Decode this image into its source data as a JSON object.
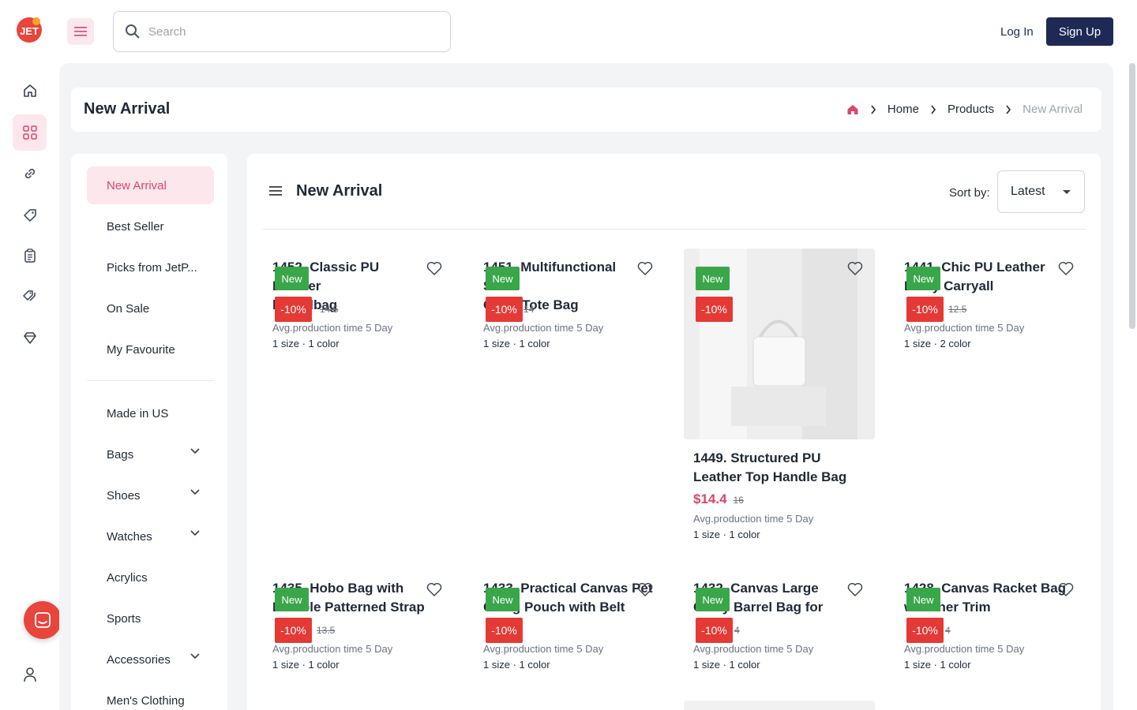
{
  "header": {
    "logo_text": "JET",
    "search_placeholder": "Search",
    "login_label": "Log In",
    "signup_label": "Sign Up"
  },
  "rail": {
    "icons": [
      "home-icon",
      "grid-icon",
      "link-icon",
      "tag-icon",
      "clipboard-icon",
      "tags-icon",
      "diamond-icon"
    ],
    "active": "grid-icon"
  },
  "page": {
    "title": "New Arrival",
    "breadcrumb": [
      "Home",
      "Products",
      "New Arrival"
    ]
  },
  "categories": {
    "items": [
      {
        "label": "New Arrival",
        "active": true
      },
      {
        "label": "Best Seller"
      },
      {
        "label": "Picks from JetP..."
      },
      {
        "label": "On Sale"
      },
      {
        "label": "My Favourite"
      },
      {
        "label": "Made in US"
      },
      {
        "label": "Bags",
        "expandable": true
      },
      {
        "label": "Shoes",
        "expandable": true
      },
      {
        "label": "Watches",
        "expandable": true
      },
      {
        "label": "Acrylics"
      },
      {
        "label": "Sports"
      },
      {
        "label": "Accessories",
        "expandable": true
      },
      {
        "label": "Men's Clothing"
      }
    ]
  },
  "products_panel": {
    "title": "New Arrival",
    "sort_label": "Sort by:",
    "sort_value": "Latest",
    "badge_new": "New",
    "badge_discount": "-10%",
    "products": [
      {
        "title": "1452. Classic PU Leather Handbag",
        "title_lines": [
          "1452. Classic PU Leather",
          "Handbag"
        ],
        "title_display": [
          "1452. Classic PU Leather",
          "l    Handbag"
        ],
        "price": "",
        "old_price": "14.5",
        "production": "Avg.production time 5 Day",
        "variants": "1 size · 1 color"
      },
      {
        "title": "1451. Multifunctional Side-Open Pet Tote Bag",
        "title_display": [
          "1451. Multifunctional Side-",
          "O    Pet Tote Bag"
        ],
        "price": "",
        "old_price": "14",
        "production": "Avg.production time 5 Day",
        "variants": "1 size · 1 color"
      },
      {
        "title": "1449. Structured PU Leather Top Handle Bag",
        "title_display": [
          "1449. Structured PU",
          "Leather Top Handle Bag"
        ],
        "price": "$14.4",
        "old_price": "16",
        "production": "Avg.production time 5 Day",
        "variants": "1 size · 1 color"
      },
      {
        "title": "1441. Chic PU Leather Everyday Carryall",
        "title_display": [
          "1441. Chic PU Leather",
          "E    day Carryall"
        ],
        "price": "",
        "old_price": "12.5",
        "production": "Avg.production time 5 Day",
        "variants": "1 size · 2 color"
      },
      {
        "title": "1435. Hobo Bag with Detachable Patterned Strap",
        "title_display": [
          "1435. Hobo Bag with",
          "D    hable Patterned Strap"
        ],
        "price": "",
        "old_price": "13.5",
        "production": "Avg.production time 5 Day",
        "variants": "1 size · 1 color"
      },
      {
        "title": "1433. Practical Canvas Pet Carrying Pouch with Belt",
        "title_display": [
          "1433. Practical Canvas Pet",
          "Ca    ng Pouch with Belt"
        ],
        "price": "",
        "old_price": "",
        "production": "Avg.production time 5 Day",
        "variants": "1 size · 1 color"
      },
      {
        "title": "1432. Canvas Large Capacity Barrel Bag for",
        "title_display": [
          "1432. Canvas Large",
          "C    city Barrel Bag for"
        ],
        "price": "",
        "old_price": "4",
        "production": "Avg.production time 5 Day",
        "variants": "1 size · 1 color"
      },
      {
        "title": "1428. Canvas Racket Bag with Leather Trim",
        "title_display": [
          "1428. Canvas Racket Bag",
          "w    eather Trim"
        ],
        "price": "",
        "old_price": "4",
        "production": "Avg.production time 5 Day",
        "variants": "1 size · 1 color"
      }
    ]
  },
  "colors": {
    "primary": "#1e2a55",
    "accent_pink": "#d9466f",
    "badge_green": "#3aa64a",
    "badge_red": "#e53935"
  }
}
